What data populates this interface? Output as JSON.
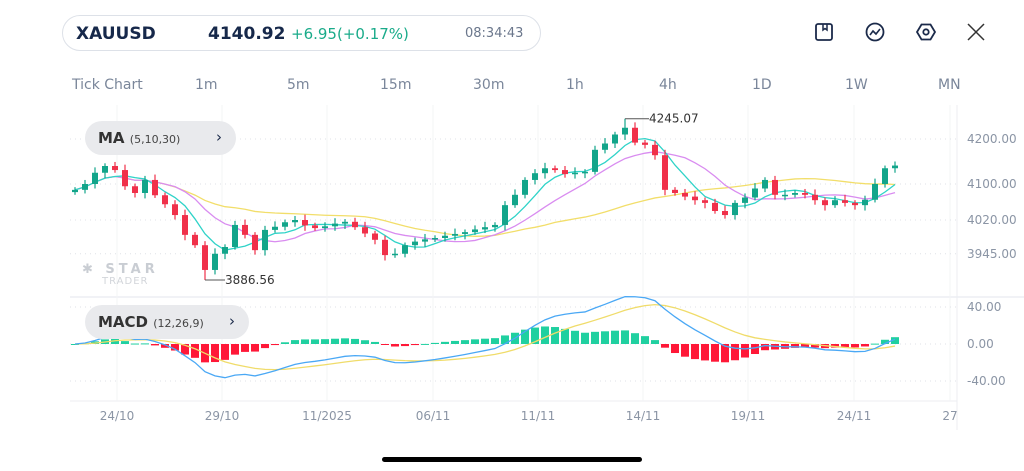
{
  "header": {
    "symbol": "XAUUSD",
    "price": "4140.92",
    "change": "+6.95(+0.17%)",
    "time": "08:34:43"
  },
  "toolbar": {
    "icons": [
      "bookmark-icon",
      "indicator-icon",
      "settings-icon",
      "close-icon"
    ]
  },
  "timeframes": [
    "Tick Chart",
    "1m",
    "5m",
    "15m",
    "30m",
    "1h",
    "4h",
    "1D",
    "1W",
    "MN"
  ],
  "indicators": {
    "ma": {
      "name": "MA",
      "params": "(5,10,30)"
    },
    "macd": {
      "name": "MACD",
      "params": "(12,26,9)"
    }
  },
  "watermark": {
    "line1": "STAR",
    "line2": "TRADER"
  },
  "colors": {
    "up": "#12a58a",
    "down": "#f0304a",
    "ma5": "#2fd3c8",
    "ma10": "#d98cf0",
    "ma30": "#f2de6a",
    "macd": "#4aa8f5",
    "signal": "#f0dc6a",
    "hist_up": "#20d0a0",
    "hist_down": "#ff1838"
  },
  "chart_data": {
    "type": "candlestick",
    "price_axis": {
      "ticks": [
        "4200.00",
        "4100.00",
        "4020.00",
        "3945.00"
      ],
      "values": [
        4200,
        4100,
        4020,
        3945
      ]
    },
    "macd_axis": {
      "ticks": [
        "40.00",
        "0.00",
        "-40.00"
      ],
      "values": [
        40,
        0,
        -40
      ]
    },
    "x_ticks": [
      "24/10",
      "29/10",
      "11/2025",
      "06/11",
      "11/11",
      "14/11",
      "19/11",
      "24/11",
      "27"
    ],
    "annotations": {
      "high": {
        "label": "4245.07",
        "value": 4245.07,
        "index": 55
      },
      "low": {
        "label": "3886.56",
        "value": 3886.56,
        "index": 13
      }
    },
    "closes": [
      4087,
      4100,
      4125,
      4140,
      4131,
      4095,
      4080,
      4109,
      4075,
      4055,
      4031,
      3987,
      3964,
      3909,
      3945,
      3960,
      4009,
      3987,
      3953,
      3998,
      4005,
      4015,
      4020,
      4008,
      4002,
      4006,
      4012,
      4016,
      4004,
      3990,
      3976,
      3942,
      3945,
      3964,
      3972,
      3977,
      3980,
      3985,
      3989,
      3993,
      3999,
      4004,
      4009,
      4053,
      4076,
      4109,
      4124,
      4135,
      4131,
      4122,
      4125,
      4127,
      4176,
      4190,
      4210,
      4225,
      4192,
      4187,
      4164,
      4087,
      4080,
      4072,
      4064,
      4058,
      4040,
      4031,
      4058,
      4070,
      4090,
      4109,
      4076,
      4076,
      4080,
      4076,
      4064,
      4053,
      4064,
      4058,
      4053,
      4065,
      4100,
      4135,
      4141
    ]
  }
}
